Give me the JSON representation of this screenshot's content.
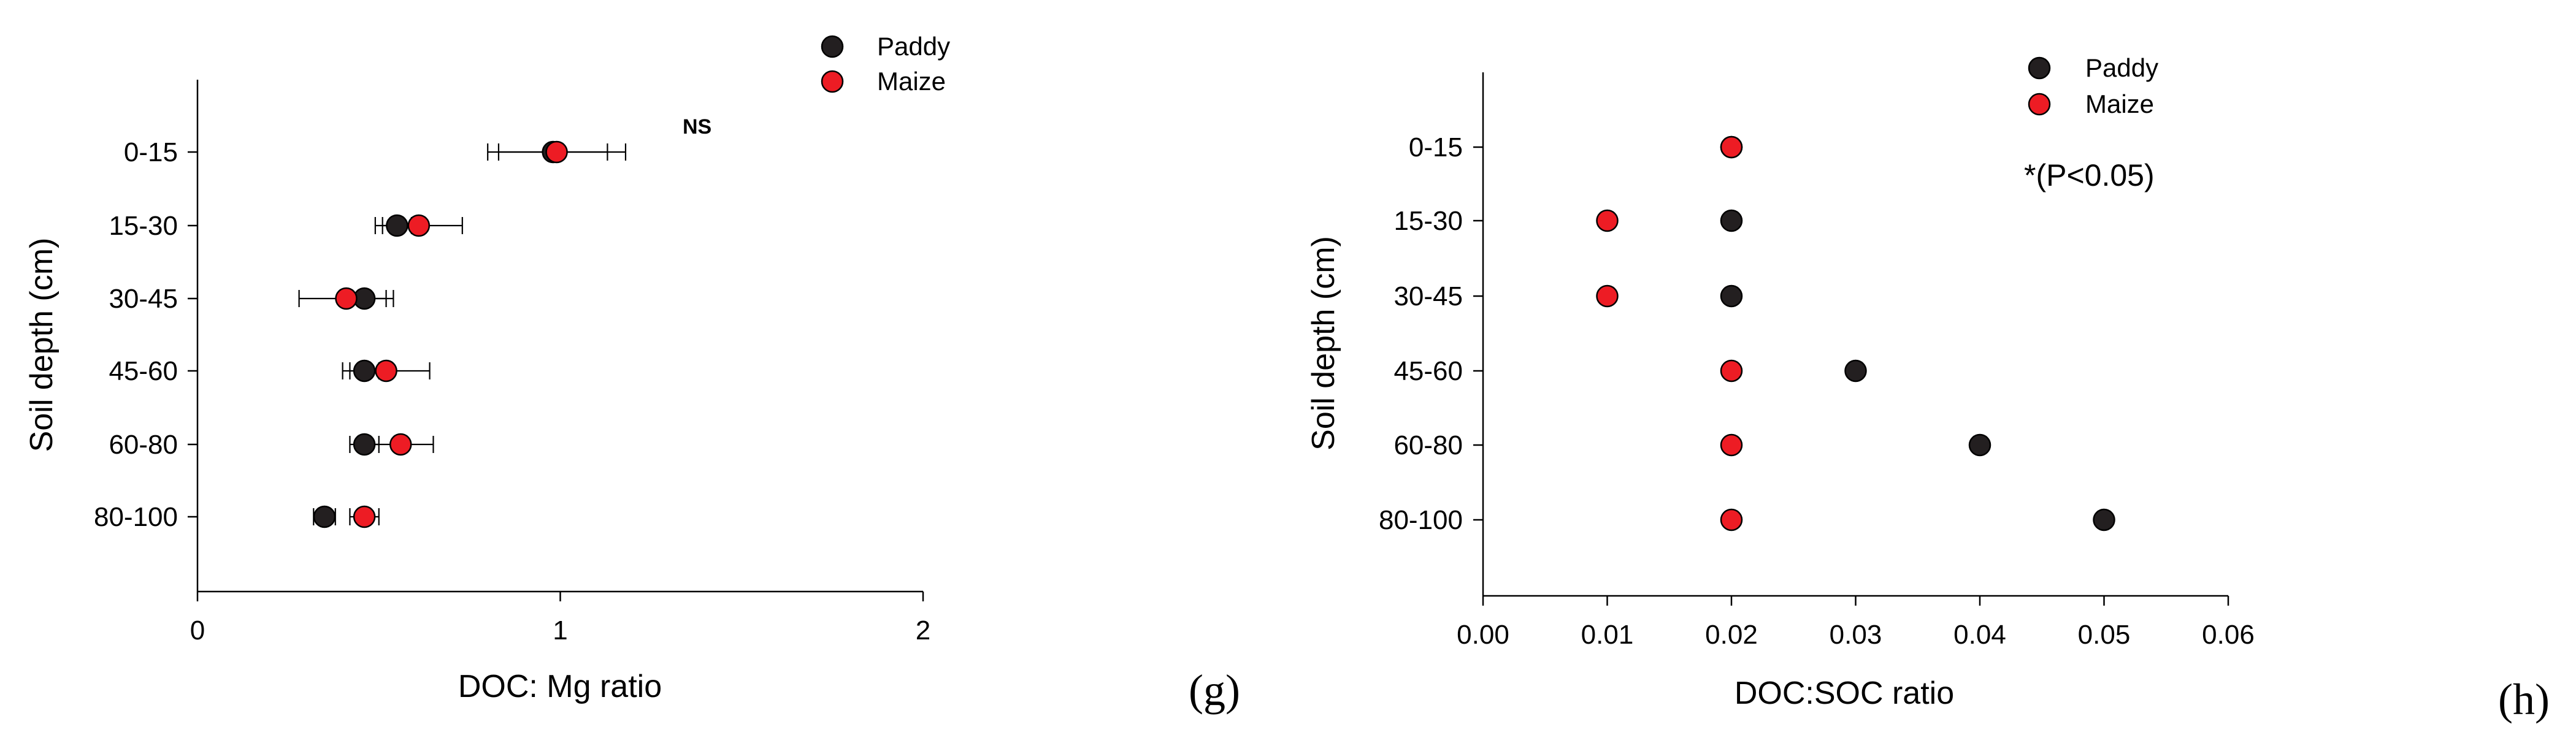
{
  "chart_data": [
    {
      "type": "scatter",
      "panel_label": "(g)",
      "title": "",
      "xlabel": "DOC: Mg ratio",
      "ylabel": "Soil depth (cm)",
      "xlim": [
        0,
        2
      ],
      "x_ticks": [
        "0",
        "1",
        "2"
      ],
      "categories": [
        "0-15",
        "15-30",
        "30-45",
        "45-60",
        "60-80",
        "80-100"
      ],
      "annotation": "NS",
      "legend_position": "top-right",
      "series": [
        {
          "name": "Paddy",
          "color": "#231f20",
          "values": [
            0.98,
            0.55,
            0.46,
            0.46,
            0.46,
            0.35
          ],
          "errors": [
            0.15,
            0.04,
            0.06,
            0.04,
            0.04,
            0.03
          ]
        },
        {
          "name": "Maize",
          "color": "#ed1c24",
          "values": [
            0.99,
            0.61,
            0.41,
            0.52,
            0.56,
            0.46
          ],
          "errors": [
            0.19,
            0.12,
            0.13,
            0.12,
            0.09,
            0.04
          ]
        }
      ]
    },
    {
      "type": "scatter",
      "panel_label": "(h)",
      "title": "",
      "xlabel": "DOC:SOC ratio",
      "ylabel": "Soil depth (cm)",
      "xlim": [
        0,
        0.06
      ],
      "x_ticks": [
        "0.00",
        "0.01",
        "0.02",
        "0.03",
        "0.04",
        "0.05",
        "0.06"
      ],
      "categories": [
        "0-15",
        "15-30",
        "30-45",
        "45-60",
        "60-80",
        "80-100"
      ],
      "annotation": "*(P<0.05)",
      "legend_position": "top-right",
      "series": [
        {
          "name": "Paddy",
          "color": "#231f20",
          "values": [
            0.02,
            0.02,
            0.02,
            0.03,
            0.04,
            0.05
          ]
        },
        {
          "name": "Maize",
          "color": "#ed1c24",
          "values": [
            0.02,
            0.01,
            0.01,
            0.02,
            0.02,
            0.02
          ]
        }
      ]
    }
  ]
}
